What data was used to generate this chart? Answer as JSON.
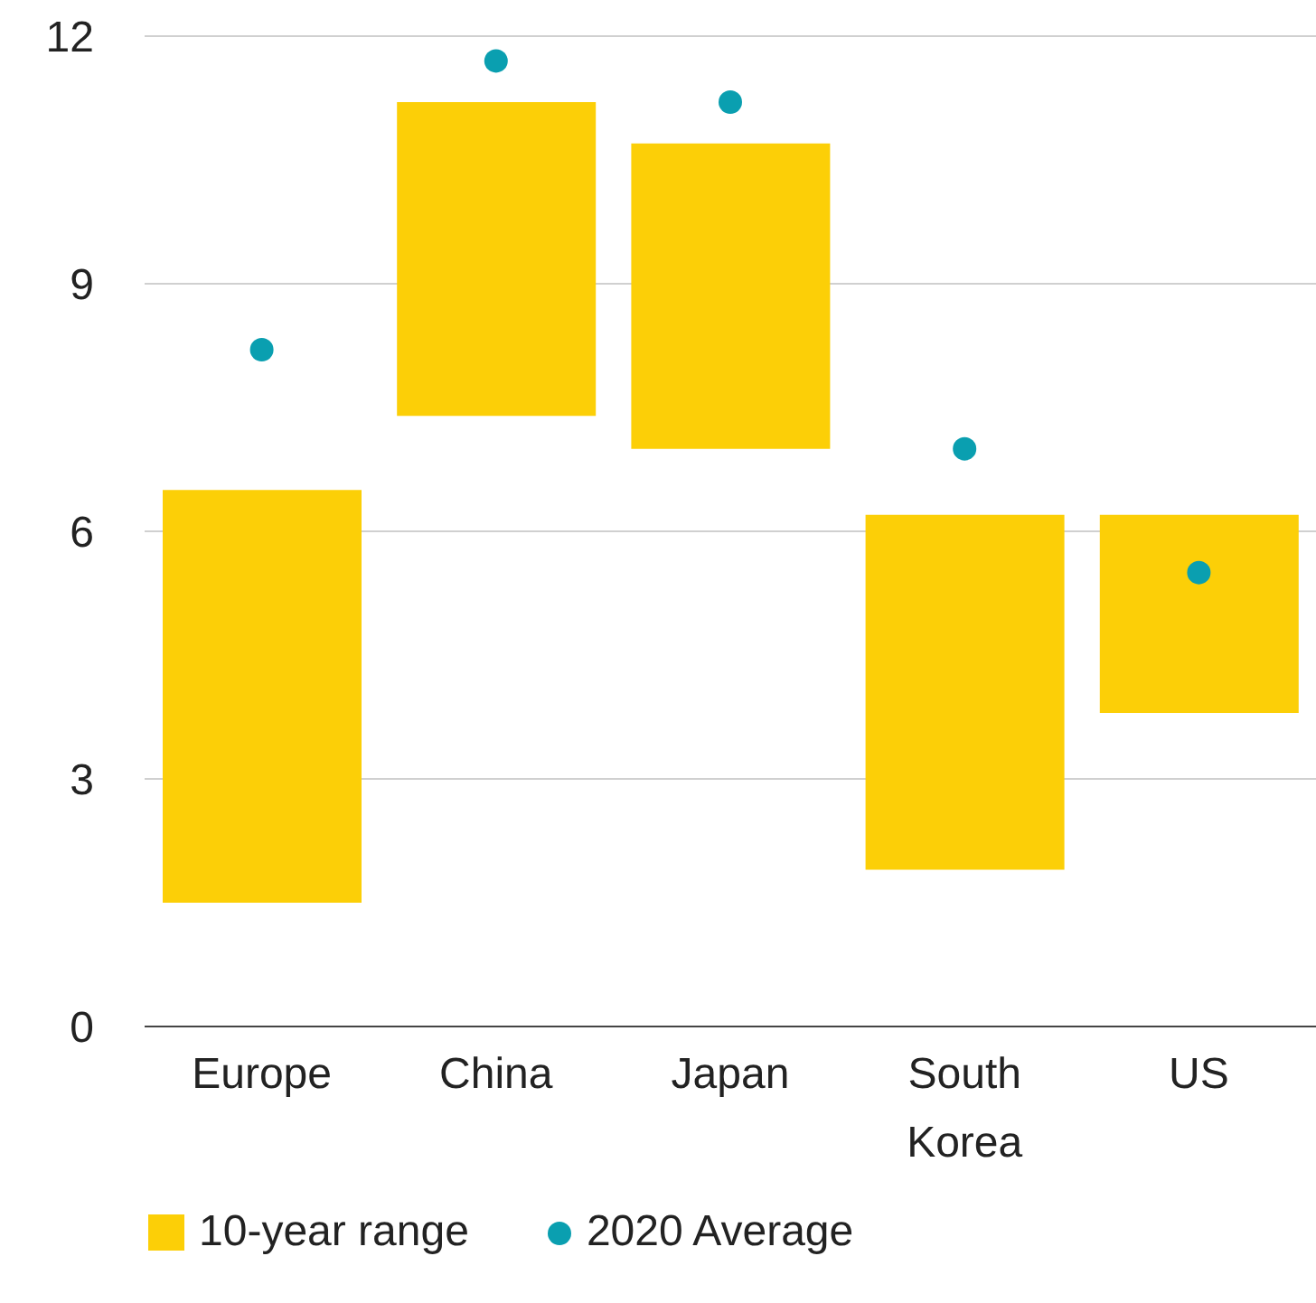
{
  "chart_data": {
    "type": "bar",
    "categories": [
      "Europe",
      "China",
      "Japan",
      "South Korea",
      "US"
    ],
    "series": [
      {
        "name": "10-year range",
        "color": "#fccf07",
        "base": [
          1.5,
          7.4,
          7.0,
          1.9,
          3.8
        ],
        "values": [
          5.0,
          3.8,
          3.7,
          4.3,
          2.4
        ]
      },
      {
        "type": "scatter",
        "name": "2020 Average",
        "color": "#0a9fb0",
        "x": [
          "Europe",
          "China",
          "Japan",
          "South Korea",
          "US"
        ],
        "values": [
          8.2,
          11.7,
          11.2,
          7.0,
          5.5
        ]
      }
    ],
    "ylim": [
      0,
      12
    ],
    "yticks": [
      0,
      3,
      6,
      9,
      12
    ],
    "grid": "y",
    "legend": "bottom left",
    "marker": "circle"
  }
}
